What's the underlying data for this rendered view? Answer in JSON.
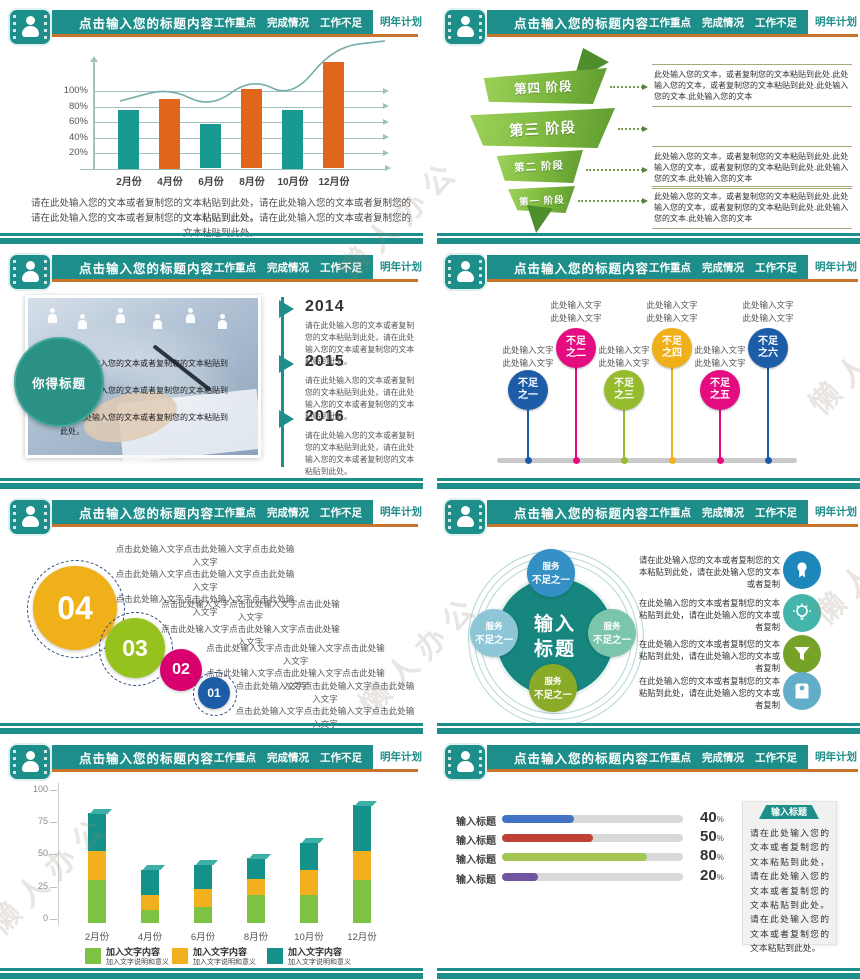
{
  "watermark": {
    "text": "懒人办公"
  },
  "header": {
    "title": "点击输入您的标题内容",
    "menu_items": [
      "工作重点",
      "完成情况",
      "工作不足"
    ],
    "active_item": "明年计划"
  },
  "colors": {
    "teal": "#1e8e8a",
    "orange_rule": "#c8742c"
  },
  "slide1": {
    "chart_data": {
      "type": "bar+line",
      "categories": [
        "2月份",
        "4月份",
        "6月份",
        "8月份",
        "10月份",
        "12月份"
      ],
      "bar_values_pct": [
        75,
        90,
        57,
        102,
        75,
        137
      ],
      "bar_colors": [
        "#189a93",
        "#e0661b",
        "#189a93",
        "#e0661b",
        "#189a93",
        "#e0661b"
      ],
      "line_values_pct": [
        90,
        104,
        78,
        117,
        91,
        157
      ],
      "y_ticks": [
        "100%",
        "80%",
        "60%",
        "40%",
        "20%"
      ],
      "grid": true,
      "line_color": "#76aea9"
    },
    "paragraph": [
      "请在此处输入您的文本或者复制您的文本粘贴到此处，请在此处输入您的文本或者复制您的文本粘贴到此处。",
      "请在此处输入您的文本或者复制您的文本粘贴到此处，请在此处输入您的文本或者复制您的文本粘贴到此处。"
    ]
  },
  "slide2": {
    "stages": [
      "第四 阶段",
      "第三 阶段",
      "第二 阶段",
      "第一 阶段"
    ],
    "blocks": [
      "此处输入您的文本，或者复制您的文本粘贴到此处.此处输入您的文本，或者复制您的文本粘贴到此处.此处输入您的文本.此处输入您的文本",
      "",
      "此处输入您的文本，或者复制您的文本粘贴到此处.此处输入您的文本，或者复制您的文本粘贴到此处.此处输入您的文本.此处输入您的文本",
      "此处输入您的文本，或者复制您的文本粘贴到此处.此处输入您的文本，或者复制您的文本粘贴到此处.此处输入您的文本.此处输入您的文本"
    ]
  },
  "slide3": {
    "photo_badge": "你得标题",
    "photo_caption": [
      "请在此处输入您的文本或者复制您的文本粘贴到此处，",
      "请在此处输入您的文本或者复制您的文本粘贴到此处，",
      "请在此处输入您的文本或者复制您的文本粘贴到此处，"
    ],
    "timeline": [
      {
        "year": "2014",
        "text": "请在此处输入您的文本或者复制您的文本粘贴到此处，请在此处输入您的文本或者复制您的文本粘贴到此处。"
      },
      {
        "year": "2015",
        "text": "请在此处输入您的文本或者复制您的文本粘贴到此处，请在此处输入您的文本或者复制您的文本粘贴到此处。"
      },
      {
        "year": "2016",
        "text": "请在此处输入您的文本或者复制您的文本粘贴到此处，请在此处输入您的文本或者复制您的文本粘贴到此处。"
      }
    ]
  },
  "slide4": {
    "label_line1": "此处输入文字",
    "label_line2": "此处输入文字",
    "items": [
      {
        "title_l1": "不足",
        "title_l2": "之一",
        "color": "#1d5da8",
        "high": false
      },
      {
        "title_l1": "不足",
        "title_l2": "之二",
        "color": "#e50b80",
        "high": true
      },
      {
        "title_l1": "不足",
        "title_l2": "之三",
        "color": "#96bb2d",
        "high": false
      },
      {
        "title_l1": "不足",
        "title_l2": "之四",
        "color": "#f0b019",
        "high": true
      },
      {
        "title_l1": "不足",
        "title_l2": "之五",
        "color": "#e50b80",
        "high": false
      },
      {
        "title_l1": "不足",
        "title_l2": "之六",
        "color": "#1d5da8",
        "high": true
      }
    ]
  },
  "slide5": {
    "items": [
      {
        "num": "04",
        "color": "#f0b019",
        "lines": [
          "点击此处输入文字点击此处输入文字点击此处输入文字",
          "点击此处输入文字点击此处输入文字点击此处输入文字",
          "点击此处输入文字点击此处输入文字点击此处输入文字"
        ]
      },
      {
        "num": "03",
        "color": "#96c21e",
        "lines": [
          "点击此处输入文字点击此处输入文字点击此处输入文字",
          "点击此处输入文字点击此处输入文字点击此处输入文字"
        ]
      },
      {
        "num": "02",
        "color": "#d8006e",
        "lines": [
          "点击此处输入文字点击此处输入文字点击此处输入文字",
          "点击此处输入文字点击此处输入文字点击此处输入文字"
        ]
      },
      {
        "num": "01",
        "color": "#1d5da8",
        "lines": [
          "点击此处输入文字点击此处输入文字点击此处输入文字",
          "点击此处输入文字点击此处输入文字点击此处输入文字"
        ]
      }
    ]
  },
  "slide6": {
    "center_l1": "输入",
    "center_l2": "标题",
    "satellite_l1": "服务",
    "satellite_l2": "不足之一",
    "satellite_colors": [
      "#338fc4",
      "#8ec6d8",
      "#7cc5ad",
      "#8aab28"
    ],
    "rows": [
      {
        "icon": "award-icon",
        "color": "#1d87bc",
        "text": "请在此处输入您的文本或者复制您的文本粘贴到此处，请在此处输入您的文本或者复制"
      },
      {
        "icon": "lightbulb-icon",
        "color": "#45b5ac",
        "text": "在此处输入您的文本或者复制您的文本粘贴到此处，请在此处输入您的文本或者复制"
      },
      {
        "icon": "funnel-icon",
        "color": "#76a228",
        "text": "在此处输入您的文本或者复制您的文本粘贴到此处，请在此处输入您的文本或者复制"
      },
      {
        "icon": "tag-icon",
        "color": "#62aec9",
        "text": "在此处输入您的文本或者复制您的文本粘贴到此处，请在此处输入您的文本或者复制"
      }
    ]
  },
  "slide7": {
    "chart_data": {
      "type": "stacked-bar",
      "categories": [
        "2月份",
        "4月份",
        "6月份",
        "8月份",
        "10月份",
        "12月份"
      ],
      "series": [
        {
          "name": "加入文字内容",
          "color": "#7dc243",
          "values": [
            33,
            10,
            12,
            22,
            22,
            33
          ]
        },
        {
          "name": "加入文字内容",
          "color": "#f2b01e",
          "values": [
            23,
            12,
            14,
            12,
            19,
            23
          ]
        },
        {
          "name": "加入文字内容",
          "color": "#13918a",
          "values": [
            29,
            19,
            19,
            16,
            21,
            35
          ]
        }
      ],
      "y_ticks": [
        "100",
        "75",
        "50",
        "25",
        "0"
      ],
      "ylim": [
        0,
        100
      ],
      "legend_position": "bottom"
    },
    "legend_subtitle": "加入文字说明和意义"
  },
  "slide8": {
    "chart_data": {
      "type": "bar",
      "orientation": "horizontal",
      "categories": [
        "输入标题",
        "输入标题",
        "输入标题",
        "输入标题"
      ],
      "values": [
        40,
        50,
        80,
        20
      ],
      "unit": "%",
      "colors": [
        "#4472c4",
        "#bf4136",
        "#a3c553",
        "#7155a3"
      ]
    },
    "panel": {
      "title": "输入标题",
      "text": "请在此处输入您的文本或者复制您的文本粘贴到此处，请在此处输入您的文本或者复制您的文本粘贴到此处。请在此处输入您的文本或者复制您的文本粘贴到此处。"
    }
  }
}
